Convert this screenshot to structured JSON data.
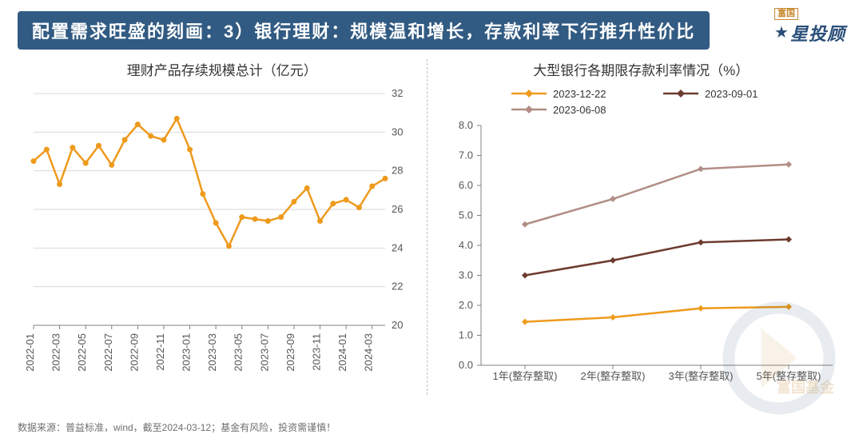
{
  "header": {
    "title": "配置需求旺盛的刻画：3）银行理财：规模温和增长，存款利率下行推升性价比",
    "bg_color": "#325b83",
    "text_color": "#ffffff"
  },
  "logo": {
    "top": "富国",
    "star": "★",
    "main": "星投顾",
    "watermark_text": "富国基金"
  },
  "footer": "数据来源：普益标准，wind，截至2024-03-12；基金有风险，投资需谨慎！",
  "left_chart": {
    "type": "line",
    "title": "理财产品存续规模总计（亿元）",
    "x_labels": [
      "2022-01",
      "2022-03",
      "2022-05",
      "2022-07",
      "2022-09",
      "2022-11",
      "2023-01",
      "2023-03",
      "2023-05",
      "2023-07",
      "2023-09",
      "2023-11",
      "2024-01",
      "2024-03"
    ],
    "y_ticks": [
      20,
      22,
      24,
      26,
      28,
      30,
      32
    ],
    "ylim": [
      20,
      32
    ],
    "series": {
      "color": "#ee9a1d",
      "marker_color": "#ee9a1d",
      "line_width": 2.5,
      "marker_radius": 3.5,
      "values": [
        28.5,
        29.1,
        27.3,
        29.2,
        28.4,
        29.3,
        28.3,
        29.6,
        30.4,
        29.8,
        29.6,
        30.7,
        29.1,
        26.8,
        25.3,
        24.1,
        25.6,
        25.5,
        25.4,
        25.6,
        26.4,
        27.1,
        25.4,
        26.3,
        26.5,
        26.1,
        27.2,
        27.6
      ]
    },
    "grid_color": "#d9d9d9",
    "label_fontsize": 13,
    "tick_fontsize": 13,
    "axis_color": "#808080"
  },
  "right_chart": {
    "type": "line",
    "title": "大型银行各期限存款利率情况（%）",
    "x_labels": [
      "1年(整存整取)",
      "2年(整存整取)",
      "3年(整存整取)",
      "5年(整存整取)"
    ],
    "y_ticks": [
      0.0,
      1.0,
      2.0,
      3.0,
      4.0,
      5.0,
      6.0,
      7.0,
      8.0
    ],
    "ylim": [
      0.0,
      8.0
    ],
    "legend": [
      {
        "label": "2023-12-22",
        "color": "#ee9a1d",
        "marker": "diamond"
      },
      {
        "label": "2023-09-01",
        "color": "#6d3b2f",
        "marker": "diamond"
      },
      {
        "label": "2023-06-08",
        "color": "#b28d86",
        "marker": "diamond"
      }
    ],
    "series": [
      {
        "name": "2023-12-22",
        "color": "#ee9a1d",
        "values": [
          1.45,
          1.6,
          1.9,
          1.95
        ]
      },
      {
        "name": "2023-09-01",
        "color": "#6d3b2f",
        "values": [
          3.0,
          3.5,
          4.1,
          4.2
        ]
      },
      {
        "name": "2023-06-08",
        "color": "#b28d86",
        "values": [
          4.7,
          5.55,
          6.55,
          6.7
        ]
      }
    ],
    "line_width": 2.5,
    "marker_size": 6,
    "grid_color": "#e6e6e6",
    "label_fontsize": 13,
    "tick_fontsize": 13,
    "axis_color": "#808080"
  }
}
